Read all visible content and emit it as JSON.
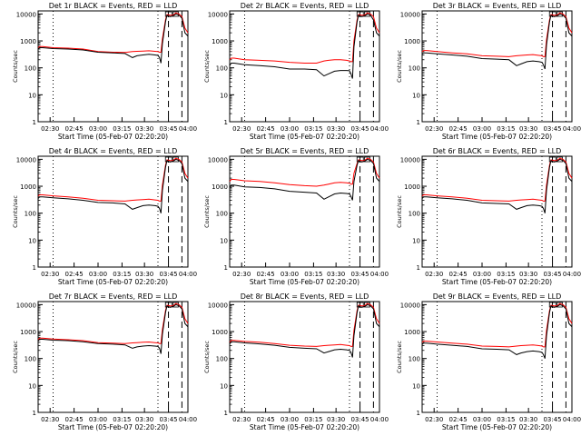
{
  "colors": {
    "events": "#000000",
    "lld": "#ff0000",
    "axes": "#000000",
    "background": "#ffffff"
  },
  "common": {
    "ylabel": "Counts/sec",
    "xlabel": "Start Time (05-Feb-07 02:20:20)",
    "xticks": [
      "02:30",
      "02:45",
      "03:00",
      "03:15",
      "03:30",
      "03:45",
      "04:00"
    ],
    "yticks": [
      "1",
      "10",
      "100",
      "1000",
      "10000"
    ],
    "yscale": "log",
    "ylim": [
      1,
      13000
    ],
    "xlim_minutes_from_start": [
      0,
      100
    ]
  },
  "chart_data": [
    {
      "type": "line",
      "title": "Det 1r BLACK = Events, RED = LLD",
      "series": [
        {
          "name": "Events",
          "x": [
            0,
            1,
            3,
            10,
            20,
            30,
            40,
            50,
            58,
            63,
            66,
            70,
            74,
            78,
            80,
            81,
            82,
            83,
            85,
            86,
            88,
            90,
            92,
            94,
            96,
            98,
            100
          ],
          "y": [
            500,
            560,
            560,
            520,
            500,
            460,
            380,
            360,
            340,
            240,
            280,
            300,
            320,
            300,
            290,
            240,
            150,
            800,
            5000,
            9000,
            8000,
            8500,
            10000,
            9000,
            7000,
            2000,
            1500
          ]
        },
        {
          "name": "LLD",
          "x": [
            0,
            1,
            3,
            10,
            20,
            30,
            40,
            50,
            58,
            63,
            66,
            70,
            74,
            78,
            80,
            81,
            82,
            83,
            85,
            86,
            88,
            90,
            92,
            94,
            96,
            98,
            100
          ],
          "y": [
            560,
            620,
            620,
            560,
            540,
            500,
            400,
            380,
            370,
            400,
            410,
            420,
            430,
            410,
            400,
            380,
            380,
            1200,
            6000,
            9500,
            9000,
            9000,
            11000,
            10000,
            8000,
            3000,
            2000
          ]
        }
      ]
    },
    {
      "type": "line",
      "title": "Det 2r BLACK = Events, RED = LLD",
      "series": [
        {
          "name": "Events",
          "x": [
            0,
            1,
            3,
            10,
            20,
            30,
            40,
            50,
            58,
            63,
            66,
            70,
            74,
            78,
            80,
            81,
            82,
            83,
            85,
            86,
            88,
            90,
            92,
            94,
            96,
            98,
            100
          ],
          "y": [
            120,
            150,
            150,
            130,
            120,
            110,
            90,
            90,
            85,
            50,
            60,
            75,
            80,
            80,
            78,
            60,
            40,
            600,
            5000,
            9000,
            8000,
            8500,
            10000,
            9000,
            6000,
            2000,
            1500
          ]
        },
        {
          "name": "LLD",
          "x": [
            0,
            1,
            3,
            10,
            20,
            30,
            40,
            50,
            58,
            63,
            66,
            70,
            74,
            78,
            80,
            81,
            82,
            83,
            85,
            86,
            88,
            90,
            92,
            94,
            96,
            98,
            100
          ],
          "y": [
            200,
            230,
            230,
            200,
            190,
            180,
            160,
            150,
            150,
            180,
            190,
            200,
            200,
            190,
            180,
            170,
            170,
            1000,
            6000,
            9500,
            9000,
            9000,
            11000,
            10000,
            8000,
            3000,
            2000
          ]
        }
      ]
    },
    {
      "type": "line",
      "title": "Det 3r BLACK = Events, RED = LLD",
      "series": [
        {
          "name": "Events",
          "x": [
            0,
            1,
            3,
            10,
            20,
            30,
            40,
            50,
            58,
            63,
            66,
            70,
            74,
            78,
            80,
            81,
            82,
            83,
            85,
            86,
            88,
            90,
            92,
            94,
            96,
            98,
            100
          ],
          "y": [
            330,
            360,
            360,
            330,
            300,
            270,
            220,
            210,
            200,
            120,
            140,
            170,
            180,
            170,
            160,
            130,
            90,
            700,
            5000,
            9000,
            8000,
            8500,
            10000,
            9000,
            7000,
            2000,
            1500
          ]
        },
        {
          "name": "LLD",
          "x": [
            0,
            1,
            3,
            10,
            20,
            30,
            40,
            50,
            58,
            63,
            66,
            70,
            74,
            78,
            80,
            81,
            82,
            83,
            85,
            86,
            88,
            90,
            92,
            94,
            96,
            98,
            100
          ],
          "y": [
            400,
            440,
            440,
            400,
            360,
            330,
            280,
            270,
            260,
            280,
            290,
            300,
            310,
            290,
            280,
            260,
            260,
            1100,
            6000,
            9500,
            9000,
            9000,
            11000,
            10000,
            8000,
            3000,
            2000
          ]
        }
      ]
    },
    {
      "type": "line",
      "title": "Det 4r BLACK = Events, RED = LLD",
      "series": [
        {
          "name": "Events",
          "x": [
            0,
            1,
            3,
            10,
            20,
            30,
            40,
            50,
            58,
            63,
            66,
            70,
            74,
            78,
            80,
            81,
            82,
            83,
            85,
            86,
            88,
            90,
            92,
            94,
            96,
            98,
            100
          ],
          "y": [
            350,
            400,
            400,
            370,
            340,
            300,
            250,
            240,
            220,
            140,
            160,
            190,
            200,
            190,
            180,
            150,
            100,
            700,
            5000,
            9000,
            8000,
            8500,
            10000,
            9000,
            7000,
            2000,
            1500
          ]
        },
        {
          "name": "LLD",
          "x": [
            0,
            1,
            3,
            10,
            20,
            30,
            40,
            50,
            58,
            63,
            66,
            70,
            74,
            78,
            80,
            81,
            82,
            83,
            85,
            86,
            88,
            90,
            92,
            94,
            96,
            98,
            100
          ],
          "y": [
            430,
            480,
            480,
            440,
            400,
            360,
            300,
            290,
            280,
            300,
            310,
            320,
            330,
            310,
            300,
            280,
            280,
            1100,
            6000,
            9500,
            9000,
            9000,
            11000,
            10000,
            8000,
            3000,
            2000
          ]
        }
      ]
    },
    {
      "type": "line",
      "title": "Det 5r BLACK = Events, RED = LLD",
      "series": [
        {
          "name": "Events",
          "x": [
            0,
            1,
            3,
            10,
            20,
            30,
            40,
            50,
            58,
            63,
            66,
            70,
            74,
            78,
            80,
            81,
            82,
            83,
            85,
            86,
            88,
            90,
            92,
            94,
            96,
            98,
            100
          ],
          "y": [
            900,
            1100,
            1100,
            950,
            900,
            800,
            650,
            600,
            560,
            330,
            400,
            520,
            560,
            540,
            520,
            420,
            300,
            1500,
            6000,
            9000,
            8000,
            8500,
            10000,
            9000,
            7000,
            2000,
            1500
          ]
        },
        {
          "name": "LLD",
          "x": [
            0,
            1,
            3,
            10,
            20,
            30,
            40,
            50,
            58,
            63,
            66,
            70,
            74,
            78,
            80,
            81,
            82,
            83,
            85,
            86,
            88,
            90,
            92,
            94,
            96,
            98,
            100
          ],
          "y": [
            1500,
            1800,
            1800,
            1600,
            1500,
            1350,
            1150,
            1050,
            1000,
            1100,
            1200,
            1350,
            1400,
            1350,
            1300,
            1200,
            1200,
            3000,
            7000,
            9500,
            9000,
            9000,
            11000,
            10000,
            8000,
            3000,
            2000
          ]
        }
      ]
    },
    {
      "type": "line",
      "title": "Det 6r BLACK = Events, RED = LLD",
      "series": [
        {
          "name": "Events",
          "x": [
            0,
            1,
            3,
            10,
            20,
            30,
            40,
            50,
            58,
            63,
            66,
            70,
            74,
            78,
            80,
            81,
            82,
            83,
            85,
            86,
            88,
            90,
            92,
            94,
            96,
            98,
            100
          ],
          "y": [
            350,
            400,
            400,
            370,
            340,
            300,
            240,
            230,
            220,
            140,
            160,
            190,
            200,
            190,
            180,
            150,
            100,
            700,
            5000,
            9000,
            8000,
            8500,
            10000,
            9000,
            7000,
            2000,
            1500
          ]
        },
        {
          "name": "LLD",
          "x": [
            0,
            1,
            3,
            10,
            20,
            30,
            40,
            50,
            58,
            63,
            66,
            70,
            74,
            78,
            80,
            81,
            82,
            83,
            85,
            86,
            88,
            90,
            92,
            94,
            96,
            98,
            100
          ],
          "y": [
            430,
            480,
            480,
            440,
            400,
            360,
            300,
            290,
            280,
            300,
            310,
            320,
            330,
            310,
            300,
            280,
            280,
            1100,
            6000,
            9500,
            9000,
            9000,
            11000,
            10000,
            8000,
            3000,
            2000
          ]
        }
      ]
    },
    {
      "type": "line",
      "title": "Det 7r BLACK = Events, RED = LLD",
      "series": [
        {
          "name": "Events",
          "x": [
            0,
            1,
            3,
            10,
            20,
            30,
            40,
            50,
            58,
            63,
            66,
            70,
            74,
            78,
            80,
            81,
            82,
            83,
            85,
            86,
            88,
            90,
            92,
            94,
            96,
            98,
            100
          ],
          "y": [
            450,
            520,
            520,
            480,
            460,
            420,
            360,
            340,
            320,
            240,
            270,
            290,
            300,
            290,
            280,
            240,
            150,
            800,
            5000,
            9000,
            8000,
            8500,
            10000,
            9000,
            7000,
            2000,
            1500
          ]
        },
        {
          "name": "LLD",
          "x": [
            0,
            1,
            3,
            10,
            20,
            30,
            40,
            50,
            58,
            63,
            66,
            70,
            74,
            78,
            80,
            81,
            82,
            83,
            85,
            86,
            88,
            90,
            92,
            94,
            96,
            98,
            100
          ],
          "y": [
            500,
            570,
            570,
            530,
            500,
            460,
            390,
            370,
            360,
            380,
            390,
            400,
            410,
            390,
            380,
            360,
            360,
            1200,
            6000,
            9500,
            9000,
            9000,
            11000,
            10000,
            8000,
            3000,
            2000
          ]
        }
      ]
    },
    {
      "type": "line",
      "title": "Det 8r BLACK = Events, RED = LLD",
      "series": [
        {
          "name": "Events",
          "x": [
            0,
            1,
            3,
            10,
            20,
            30,
            40,
            50,
            58,
            63,
            66,
            70,
            74,
            78,
            80,
            81,
            82,
            83,
            85,
            86,
            88,
            90,
            92,
            94,
            96,
            98,
            100
          ],
          "y": [
            350,
            420,
            420,
            380,
            350,
            310,
            260,
            240,
            230,
            160,
            180,
            210,
            220,
            210,
            200,
            170,
            110,
            700,
            5000,
            9000,
            8000,
            8500,
            10000,
            9000,
            7000,
            2000,
            1500
          ]
        },
        {
          "name": "LLD",
          "x": [
            0,
            1,
            3,
            10,
            20,
            30,
            40,
            50,
            58,
            63,
            66,
            70,
            74,
            78,
            80,
            81,
            82,
            83,
            85,
            86,
            88,
            90,
            92,
            94,
            96,
            98,
            100
          ],
          "y": [
            400,
            470,
            470,
            430,
            400,
            360,
            310,
            290,
            280,
            300,
            310,
            320,
            330,
            310,
            300,
            280,
            280,
            1100,
            6000,
            9500,
            9000,
            9000,
            11000,
            10000,
            8000,
            3000,
            2000
          ]
        }
      ]
    },
    {
      "type": "line",
      "title": "Det 9r BLACK = Events, RED = LLD",
      "series": [
        {
          "name": "Events",
          "x": [
            0,
            1,
            3,
            10,
            20,
            30,
            40,
            50,
            58,
            63,
            66,
            70,
            74,
            78,
            80,
            81,
            82,
            83,
            85,
            86,
            88,
            90,
            92,
            94,
            96,
            98,
            100
          ],
          "y": [
            330,
            370,
            370,
            340,
            310,
            280,
            230,
            220,
            210,
            140,
            160,
            180,
            190,
            180,
            170,
            140,
            100,
            700,
            5000,
            9000,
            8000,
            8500,
            10000,
            9000,
            7000,
            2000,
            1500
          ]
        },
        {
          "name": "LLD",
          "x": [
            0,
            1,
            3,
            10,
            20,
            30,
            40,
            50,
            58,
            63,
            66,
            70,
            74,
            78,
            80,
            81,
            82,
            83,
            85,
            86,
            88,
            90,
            92,
            94,
            96,
            98,
            100
          ],
          "y": [
            400,
            440,
            440,
            410,
            370,
            340,
            290,
            280,
            270,
            290,
            300,
            310,
            320,
            300,
            290,
            270,
            270,
            1100,
            6000,
            9500,
            9000,
            9000,
            11000,
            10000,
            8000,
            3000,
            2000
          ]
        }
      ]
    }
  ]
}
